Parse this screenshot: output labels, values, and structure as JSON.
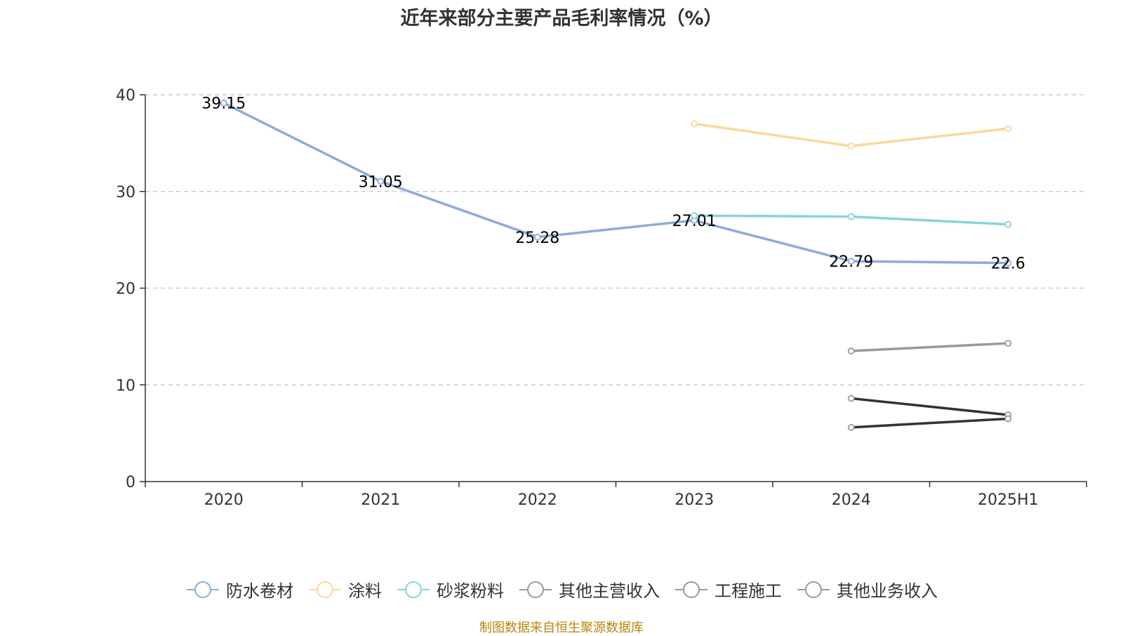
{
  "chart_data": {
    "type": "line",
    "title": "近年来部分主要产品毛利率情况（%）",
    "categories": [
      "2020",
      "2021",
      "2022",
      "2023",
      "2024",
      "2025H1"
    ],
    "ylim": [
      0,
      40
    ],
    "yticks": [
      0,
      10,
      20,
      30,
      40
    ],
    "grid": true,
    "legend_position": "bottom",
    "series": [
      {
        "name": "防水卷材",
        "color": "#8eabd8",
        "values": [
          39.15,
          31.05,
          25.28,
          27.01,
          22.79,
          22.6
        ],
        "labels": [
          "39.15",
          "31.05",
          "25.28",
          "27.01",
          "22.79",
          "22.6"
        ]
      },
      {
        "name": "涂料",
        "color": "#fbd997",
        "values": [
          null,
          null,
          null,
          37.0,
          34.7,
          36.5
        ],
        "labels": []
      },
      {
        "name": "砂浆粉料",
        "color": "#86d5d5",
        "values": [
          null,
          null,
          null,
          27.5,
          27.4,
          26.6
        ],
        "labels": []
      },
      {
        "name": "其他主营收入",
        "color": "#9a9a9a",
        "values": [
          null,
          null,
          null,
          null,
          13.5,
          14.3
        ],
        "labels": []
      },
      {
        "name": "工程施工",
        "color": "#333333",
        "values": [
          null,
          null,
          null,
          null,
          8.6,
          6.9
        ],
        "labels": []
      },
      {
        "name": "其他业务收入",
        "color": "#333333",
        "values": [
          null,
          null,
          null,
          null,
          5.6,
          6.5
        ],
        "labels": []
      }
    ]
  },
  "legend_icon_color": "#9a9a9a",
  "source_note": "制图数据来自恒生聚源数据库"
}
